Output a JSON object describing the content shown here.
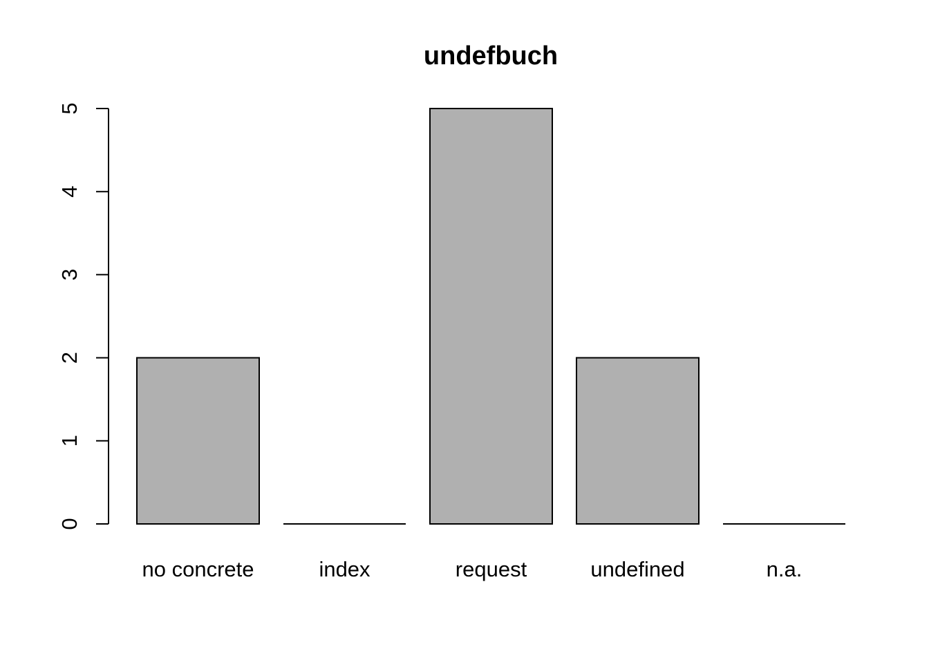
{
  "chart_data": {
    "type": "bar",
    "title": "undefbuch",
    "xlabel": "",
    "ylabel": "",
    "categories": [
      "no concrete",
      "index",
      "request",
      "undefined",
      "n.a."
    ],
    "values": [
      2,
      0,
      5,
      2,
      0
    ],
    "ylim": [
      0,
      5
    ],
    "yticks": [
      "0",
      "1",
      "2",
      "3",
      "4",
      "5"
    ],
    "grid": false,
    "legend": "none",
    "bar_color": "#b0b0b0",
    "bar_edge_color": "#000000"
  }
}
